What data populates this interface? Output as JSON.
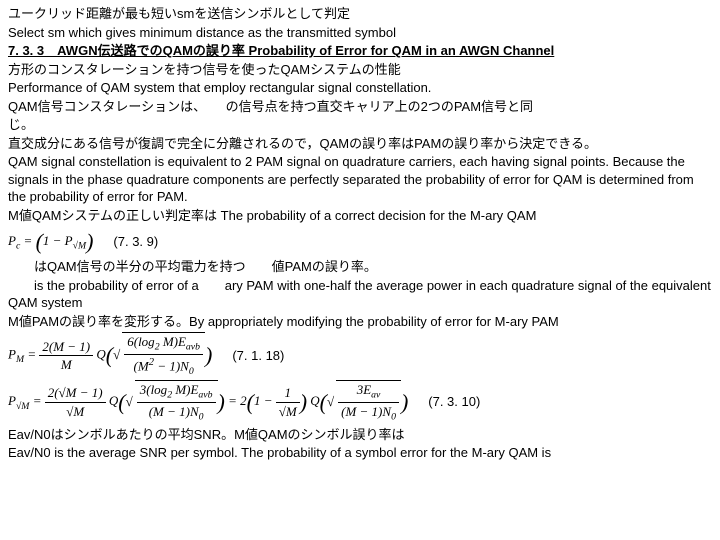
{
  "l1": "ユークリッド距離が最も短いsmを送信シンボルとして判定",
  "l2": "Select sm which gives minimum distance as the transmitted symbol",
  "sec": "7. 3. 3　AWGN伝送路でのQAMの誤り率 Probability of Error for QAM in an AWGN Channel",
  "l3": "方形のコンスタレーションを持つ信号を使ったQAMシステムの性能",
  "l4": "Performance of QAM system that employ rectangular signal constellation.",
  "l5a": "QAM信号コンスタレーションは、　　の信号点を持つ直交キャリア上の2つのPAM信号と同",
  "l5b": "じ。",
  "l6": "直交成分にある信号が復調で完全に分離されるので，QAMの誤り率はPAMの誤り率から決定できる。",
  "l7": "QAM signal constellation is equivalent to 2 PAM signal on quadrature carriers, each having signal points. Because the signals in the phase quadrature components are perfectly separated the probability of error for QAM is determined from the probability of error for PAM.",
  "l8": "M値QAMシステムの正しい判定率は The probability of a correct decision for the M-ary QAM",
  "eq1n": "(7. 3. 9)",
  "l9": "　　はQAM信号の半分の平均電力を持つ　　値PAMの誤り率。",
  "l10": "　　is the probability of error of a　　ary PAM with one-half the average power in each quadrature signal of the equivalent QAM system",
  "l11": "M値PAMの誤り率を変形する。By appropriately modifying the probability of error for M-ary PAM",
  "eq2n": "(7. 1. 18)",
  "eq3n": "(7. 3. 10)",
  "l12": "Eav/N0はシンボルあたりの平均SNR。M値QAMのシンボル誤り率は",
  "l13": "Eav/N0 is the average SNR per symbol. The probability of a symbol error for the M-ary QAM is"
}
